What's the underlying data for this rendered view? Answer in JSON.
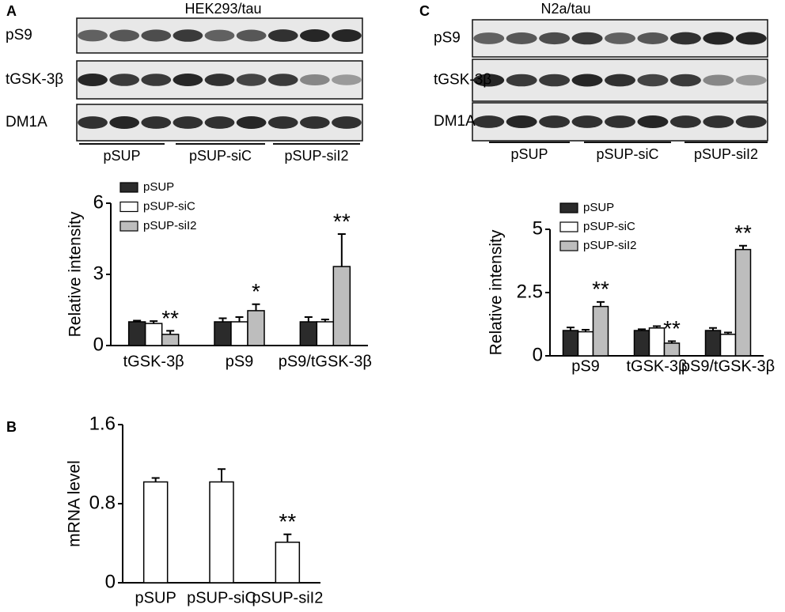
{
  "blots": [
    {
      "panel": "A",
      "title": "HEK293/tau",
      "rows": [
        "pS9",
        "tGSK-3β",
        "DM1A"
      ],
      "groups": [
        "pSUP",
        "pSUP-siC",
        "pSUP-siI2"
      ]
    },
    {
      "panel": "C",
      "title": "N2a/tau",
      "rows": [
        "pS9",
        "tGSK-3β",
        "DM1A"
      ],
      "groups": [
        "pSUP",
        "pSUP-siC",
        "pSUP-siI2"
      ]
    }
  ],
  "chart_data": [
    {
      "type": "bar",
      "y_label": "Relative intensity",
      "categories": [
        "tGSK-3β",
        "pS9",
        "pS9/tGSK-3β"
      ],
      "series": [
        {
          "name": "pSUP",
          "color": "#2b2b2b",
          "values": [
            1.0,
            1.0,
            1.0
          ],
          "errors": [
            0.05,
            0.15,
            0.2
          ]
        },
        {
          "name": "pSUP-siC",
          "color": "#ffffff",
          "values": [
            0.93,
            1.0,
            1.0
          ],
          "errors": [
            0.1,
            0.2,
            0.1
          ]
        },
        {
          "name": "pSUP-siI2",
          "color": "#bdbdbd",
          "values": [
            0.47,
            1.47,
            3.33
          ],
          "errors": [
            0.15,
            0.27,
            1.37
          ],
          "annotations": [
            "**",
            "*",
            "**"
          ]
        }
      ],
      "ylim": [
        0,
        6
      ],
      "yticks": [
        0,
        3,
        6
      ],
      "legend": "upper left"
    },
    {
      "type": "bar",
      "panel": "B",
      "y_label": "mRNA level",
      "categories": [
        "pSUP",
        "pSUP-siC",
        "pSUP-siI2"
      ],
      "series": [
        {
          "color": "#ffffff",
          "values": [
            1.02,
            1.02,
            0.41
          ],
          "errors": [
            0.04,
            0.13,
            0.08
          ],
          "annotations": [
            null,
            null,
            "**"
          ]
        }
      ],
      "ylim": [
        0,
        1.6
      ],
      "yticks": [
        0,
        0.8,
        1.6
      ]
    },
    {
      "type": "bar",
      "y_label": "Relative intensity",
      "categories": [
        "pS9",
        "tGSK-3β",
        "pS9/tGSK-3β"
      ],
      "series": [
        {
          "name": "pSUP",
          "color": "#2b2b2b",
          "values": [
            1.0,
            1.0,
            1.0
          ],
          "errors": [
            0.12,
            0.05,
            0.1
          ]
        },
        {
          "name": "pSUP-siC",
          "color": "#ffffff",
          "values": [
            0.95,
            1.1,
            0.85
          ],
          "errors": [
            0.08,
            0.07,
            0.07
          ]
        },
        {
          "name": "pSUP-siI2",
          "color": "#bdbdbd",
          "values": [
            1.95,
            0.5,
            4.2
          ],
          "errors": [
            0.18,
            0.08,
            0.15
          ],
          "annotations": [
            "**",
            "**",
            "**"
          ]
        }
      ],
      "ylim": [
        0,
        5
      ],
      "yticks": [
        0,
        2.5,
        5
      ],
      "legend": "upper left"
    }
  ]
}
